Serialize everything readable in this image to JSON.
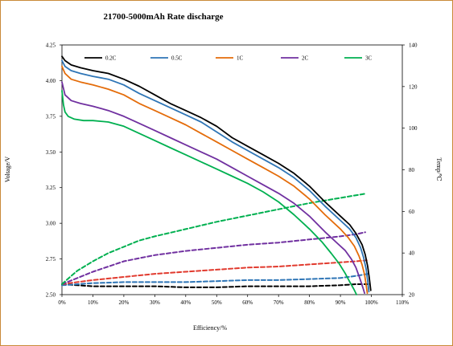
{
  "chart_data": {
    "type": "line",
    "title": "21700-5000mAh Rate discharge",
    "xlabel": "Efficiency/%",
    "ylabel_left": "Voltage/V",
    "ylabel_right": "Temp/℃",
    "xlim": [
      0,
      110
    ],
    "ylim_left": [
      2.5,
      4.25
    ],
    "ylim_right": [
      20,
      140
    ],
    "x_ticks": [
      0,
      10,
      20,
      30,
      40,
      50,
      60,
      70,
      80,
      90,
      100,
      110
    ],
    "x_tick_labels": [
      "0%",
      "10%",
      "20%",
      "30%",
      "40%",
      "50%",
      "60%",
      "70%",
      "80%",
      "90%",
      "100%",
      "110%"
    ],
    "y_left_ticks": [
      2.5,
      2.75,
      3.0,
      3.25,
      3.5,
      3.75,
      4.0,
      4.25
    ],
    "y_left_tick_labels": [
      "2.50",
      "2.75",
      "3.00",
      "3.25",
      "3.50",
      "3.75",
      "4.00",
      "4.25"
    ],
    "y_right_ticks": [
      20,
      40,
      60,
      80,
      100,
      120,
      140
    ],
    "y_right_tick_labels": [
      "20",
      "40",
      "60",
      "80",
      "100",
      "120",
      "140"
    ],
    "grid": false,
    "legend": {
      "placement": "top",
      "entries": [
        "0.2C",
        "0.5C",
        "1C",
        "2C",
        "3C"
      ]
    },
    "series": [
      {
        "name": "0.2C",
        "color": "#000000",
        "kind": "voltage",
        "x": [
          0,
          1,
          3,
          6,
          10,
          15,
          20,
          25,
          30,
          35,
          40,
          45,
          50,
          55,
          60,
          65,
          70,
          75,
          80,
          85,
          90,
          93,
          95,
          97,
          98,
          98.8,
          99.3,
          99.8
        ],
        "y": [
          4.17,
          4.14,
          4.11,
          4.09,
          4.07,
          4.05,
          4.01,
          3.96,
          3.9,
          3.84,
          3.79,
          3.74,
          3.68,
          3.6,
          3.54,
          3.48,
          3.42,
          3.35,
          3.26,
          3.15,
          3.05,
          2.99,
          2.93,
          2.85,
          2.78,
          2.7,
          2.62,
          2.53
        ]
      },
      {
        "name": "0.5C",
        "color": "#2e75b6",
        "kind": "voltage",
        "x": [
          0,
          1,
          3,
          6,
          10,
          15,
          20,
          25,
          30,
          35,
          40,
          45,
          50,
          55,
          60,
          65,
          70,
          75,
          80,
          85,
          90,
          93,
          95,
          96.5,
          97.5,
          98.3,
          98.8,
          99.2
        ],
        "y": [
          4.14,
          4.1,
          4.07,
          4.05,
          4.03,
          4.01,
          3.97,
          3.91,
          3.86,
          3.81,
          3.76,
          3.71,
          3.64,
          3.57,
          3.51,
          3.45,
          3.39,
          3.32,
          3.23,
          3.12,
          3.02,
          2.96,
          2.9,
          2.83,
          2.76,
          2.68,
          2.6,
          2.52
        ]
      },
      {
        "name": "1C",
        "color": "#e46c0a",
        "kind": "voltage",
        "x": [
          0,
          1,
          3,
          6,
          10,
          15,
          20,
          25,
          30,
          35,
          40,
          45,
          50,
          55,
          60,
          65,
          70,
          75,
          80,
          85,
          90,
          92.5,
          94.5,
          96,
          97,
          97.8,
          98.3,
          98.7
        ],
        "y": [
          4.1,
          4.05,
          4.01,
          3.99,
          3.97,
          3.94,
          3.9,
          3.84,
          3.79,
          3.74,
          3.69,
          3.63,
          3.57,
          3.51,
          3.45,
          3.39,
          3.33,
          3.26,
          3.17,
          3.06,
          2.96,
          2.9,
          2.84,
          2.77,
          2.71,
          2.64,
          2.57,
          2.51
        ]
      },
      {
        "name": "2C",
        "color": "#7030a0",
        "kind": "voltage",
        "x": [
          0,
          1,
          3,
          6,
          10,
          15,
          20,
          25,
          30,
          35,
          40,
          45,
          50,
          55,
          60,
          65,
          70,
          75,
          80,
          85,
          89,
          91.5,
          93.5,
          95,
          96,
          96.8,
          97.4,
          97.8
        ],
        "y": [
          3.99,
          3.9,
          3.86,
          3.84,
          3.82,
          3.79,
          3.75,
          3.7,
          3.65,
          3.6,
          3.55,
          3.5,
          3.45,
          3.39,
          3.33,
          3.27,
          3.21,
          3.14,
          3.05,
          2.94,
          2.86,
          2.81,
          2.75,
          2.69,
          2.63,
          2.58,
          2.54,
          2.51
        ]
      },
      {
        "name": "3C",
        "color": "#00b050",
        "kind": "voltage",
        "x": [
          0,
          0.5,
          1,
          2,
          4,
          7,
          10,
          15,
          20,
          25,
          30,
          35,
          40,
          45,
          50,
          55,
          60,
          65,
          70,
          75,
          80,
          84,
          87,
          89.5,
          91.5,
          93,
          94.3,
          95.2
        ],
        "y": [
          3.93,
          3.83,
          3.78,
          3.75,
          3.73,
          3.72,
          3.72,
          3.71,
          3.68,
          3.63,
          3.58,
          3.53,
          3.48,
          3.43,
          3.38,
          3.33,
          3.28,
          3.22,
          3.15,
          3.06,
          2.96,
          2.87,
          2.79,
          2.72,
          2.65,
          2.59,
          2.54,
          2.5
        ]
      },
      {
        "name": "0.2C",
        "color": "#000000",
        "kind": "temperature",
        "x": [
          0,
          5,
          10,
          20,
          30,
          40,
          50,
          60,
          70,
          80,
          90,
          95,
          98,
          99.5
        ],
        "y": [
          25,
          24.5,
          24,
          24,
          24,
          23.5,
          23.5,
          24,
          24,
          24,
          24.5,
          25,
          25,
          25
        ]
      },
      {
        "name": "0.5C",
        "color": "#2e75b6",
        "kind": "temperature",
        "x": [
          0,
          5,
          10,
          20,
          30,
          40,
          50,
          60,
          70,
          80,
          90,
          95,
          99
        ],
        "y": [
          24.5,
          25,
          25.5,
          26,
          26,
          26,
          26.5,
          27,
          27,
          27.5,
          28,
          29,
          30
        ]
      },
      {
        "name": "1C",
        "color": "#e13a2e",
        "kind": "temperature",
        "x": [
          0,
          5,
          10,
          20,
          30,
          40,
          50,
          60,
          70,
          80,
          90,
          95,
          98.5
        ],
        "y": [
          25,
          26,
          27,
          28.5,
          30,
          31,
          32,
          33,
          33.5,
          34.5,
          35.5,
          36,
          36.5
        ]
      },
      {
        "name": "2C",
        "color": "#7030a0",
        "kind": "temperature",
        "x": [
          0,
          5,
          10,
          15,
          20,
          25,
          30,
          40,
          50,
          60,
          70,
          80,
          90,
          95,
          98
        ],
        "y": [
          25,
          28,
          31,
          33.5,
          36,
          37.5,
          39,
          41,
          42.5,
          44,
          45,
          46.5,
          48,
          49,
          50
        ]
      },
      {
        "name": "3C",
        "color": "#00b050",
        "kind": "temperature",
        "x": [
          0,
          3,
          5,
          10,
          15,
          20,
          25,
          30,
          40,
          50,
          60,
          70,
          80,
          90,
          98
        ],
        "y": [
          25,
          29,
          31.5,
          36,
          40,
          43,
          46,
          48,
          51.5,
          55,
          58,
          61,
          64,
          66.5,
          68.5
        ]
      }
    ]
  }
}
